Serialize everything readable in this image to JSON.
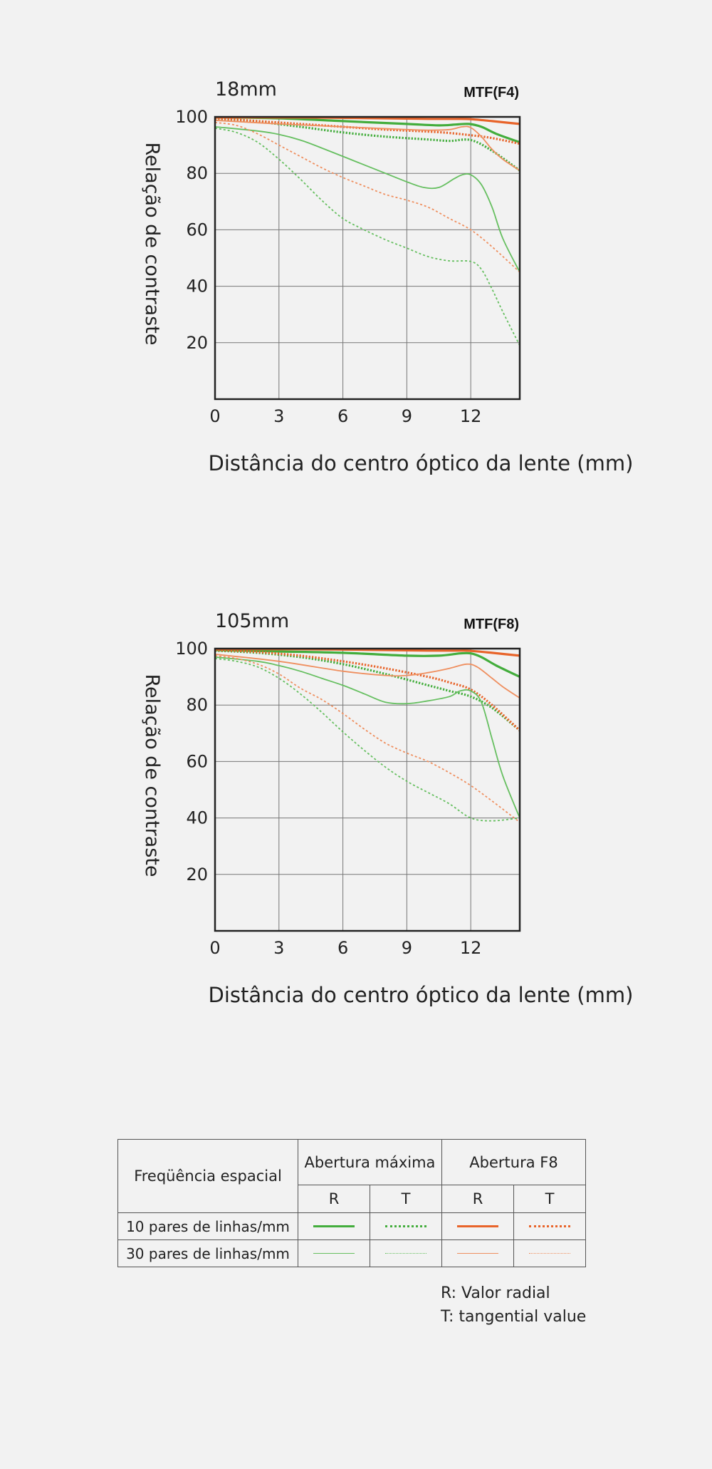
{
  "colors": {
    "green_10": "#43ad3c",
    "green_30": "#66bf60",
    "orange_10": "#e8642a",
    "orange_30": "#ef8f5f",
    "frame": "#222222",
    "grid": "#777777"
  },
  "chart_data": [
    {
      "type": "line",
      "title": "18mm",
      "subtitle": "MTF(F4)",
      "xlabel": "Distância do centro óptico da lente (mm)",
      "ylabel": "Relação de contraste",
      "xlim": [
        0,
        14.3
      ],
      "ylim": [
        0,
        100
      ],
      "xticks": [
        0,
        3,
        6,
        9,
        12
      ],
      "yticks": [
        20,
        40,
        60,
        80,
        100
      ],
      "grid": true,
      "series": [
        {
          "color": "green_10",
          "dash": "solid",
          "width": 3.2,
          "x": [
            0,
            3,
            6,
            9,
            10.5,
            11.3,
            11.9,
            12.5,
            13.2,
            14.3
          ],
          "y": [
            99.8,
            99.5,
            98.5,
            97.5,
            97,
            97.3,
            97.5,
            96.5,
            94,
            91
          ]
        },
        {
          "color": "green_10",
          "dash": "dotted",
          "width": 3.2,
          "x": [
            0,
            2,
            4,
            6,
            8,
            10,
            11,
            12,
            13,
            14.3
          ],
          "y": [
            99.5,
            98.3,
            96.5,
            94.5,
            93,
            92,
            91.5,
            91.8,
            88,
            81
          ]
        },
        {
          "color": "orange_10",
          "dash": "solid",
          "width": 3.2,
          "x": [
            0,
            4,
            8,
            10,
            11.3,
            12,
            13,
            14.3
          ],
          "y": [
            99.8,
            99.8,
            99.5,
            99.3,
            99.3,
            99.2,
            98.5,
            97.5
          ]
        },
        {
          "color": "orange_10",
          "dash": "dotted",
          "width": 3.2,
          "x": [
            0,
            2,
            4,
            6,
            8,
            10,
            11,
            12,
            13,
            14.3
          ],
          "y": [
            99.5,
            98.5,
            97.5,
            96.5,
            95.5,
            94.8,
            94.3,
            93.5,
            92.5,
            90.5
          ]
        },
        {
          "color": "green_30",
          "dash": "solid",
          "width": 1.8,
          "x": [
            0,
            2,
            3,
            4,
            5,
            6,
            7,
            8,
            9,
            9.8,
            10.5,
            11.2,
            11.6,
            12,
            12.5,
            13,
            13.5,
            14.3
          ],
          "y": [
            96.5,
            95,
            93.8,
            91.8,
            89,
            86,
            83,
            80,
            77,
            75,
            75,
            78,
            79.5,
            79.5,
            76,
            68,
            57,
            45
          ]
        },
        {
          "color": "green_30",
          "dash": "dotted",
          "width": 1.8,
          "x": [
            0,
            1,
            2,
            3,
            4,
            5,
            6,
            7,
            8,
            9,
            10,
            11,
            12,
            12.5,
            13,
            13.5,
            14.3
          ],
          "y": [
            96,
            94.5,
            91,
            85,
            78,
            70.5,
            64,
            60,
            56.5,
            53.5,
            50.5,
            49,
            48.8,
            46,
            39,
            31,
            19
          ]
        },
        {
          "color": "orange_30",
          "dash": "solid",
          "width": 1.8,
          "x": [
            0,
            3,
            6,
            9,
            10,
            11,
            11.6,
            12,
            12.5,
            13,
            13.5,
            14.3
          ],
          "y": [
            98.8,
            97.5,
            96.5,
            95.5,
            95.3,
            95.5,
            96.5,
            96.2,
            93,
            88.5,
            85,
            81
          ]
        },
        {
          "color": "orange_30",
          "dash": "dotted",
          "width": 1.8,
          "x": [
            0,
            1,
            2,
            3,
            4,
            5,
            6,
            7,
            8,
            9,
            10,
            11,
            12,
            13,
            14.3
          ],
          "y": [
            98,
            97,
            94,
            90,
            86,
            82,
            78.5,
            75.5,
            72.5,
            70.5,
            68,
            64,
            60,
            54,
            45
          ]
        }
      ]
    },
    {
      "type": "line",
      "title": "105mm",
      "subtitle": "MTF(F8)",
      "xlabel": "Distância do centro óptico da lente (mm)",
      "ylabel": "Relação de contraste",
      "xlim": [
        0,
        14.3
      ],
      "ylim": [
        0,
        100
      ],
      "xticks": [
        0,
        3,
        6,
        9,
        12
      ],
      "yticks": [
        20,
        40,
        60,
        80,
        100
      ],
      "grid": true,
      "series": [
        {
          "color": "green_10",
          "dash": "solid",
          "width": 3.2,
          "x": [
            0,
            3,
            6,
            9,
            10.5,
            11.5,
            12,
            12.5,
            13.2,
            14.3
          ],
          "y": [
            99.5,
            99,
            98.5,
            97.5,
            97.5,
            98.3,
            98.3,
            97,
            94,
            90
          ]
        },
        {
          "color": "green_10",
          "dash": "dotted",
          "width": 3.2,
          "x": [
            0,
            2,
            4,
            6,
            8,
            10,
            11,
            12,
            13,
            14.3
          ],
          "y": [
            99.3,
            98.5,
            97,
            94.5,
            91,
            87,
            85,
            83,
            79,
            71
          ]
        },
        {
          "color": "orange_10",
          "dash": "solid",
          "width": 3.2,
          "x": [
            0,
            4,
            8,
            10,
            11.5,
            12,
            13,
            14.3
          ],
          "y": [
            99.8,
            99.8,
            99.5,
            99.3,
            99.3,
            99.2,
            98.5,
            97.5
          ]
        },
        {
          "color": "orange_10",
          "dash": "dotted",
          "width": 3.2,
          "x": [
            0,
            2,
            4,
            6,
            8,
            10,
            11,
            12,
            13,
            14.3
          ],
          "y": [
            99.5,
            98.8,
            97.5,
            95.5,
            93,
            90,
            88,
            85.5,
            80,
            71
          ]
        },
        {
          "color": "green_30",
          "dash": "solid",
          "width": 1.8,
          "x": [
            0,
            2,
            3,
            4,
            5,
            6,
            7,
            8,
            9,
            10,
            11,
            11.5,
            12,
            12.5,
            13,
            13.5,
            14.3
          ],
          "y": [
            97,
            95.5,
            94,
            92,
            89.5,
            87,
            84,
            81,
            80.5,
            81.5,
            83,
            85,
            85,
            81,
            68,
            55,
            40
          ]
        },
        {
          "color": "green_30",
          "dash": "dotted",
          "width": 1.8,
          "x": [
            0,
            1,
            2,
            3,
            4,
            5,
            6,
            7,
            8,
            9,
            10,
            11,
            12,
            13,
            14.3
          ],
          "y": [
            96.5,
            95.5,
            93.5,
            89.5,
            84,
            77.5,
            70.5,
            64,
            58,
            53,
            49,
            45,
            40,
            39,
            40
          ]
        },
        {
          "color": "orange_30",
          "dash": "solid",
          "width": 1.8,
          "x": [
            0,
            3,
            6,
            8,
            9,
            10,
            11,
            11.8,
            12.3,
            13,
            13.5,
            14.3
          ],
          "y": [
            98,
            95.5,
            92,
            90.5,
            90.5,
            91.5,
            93,
            94.5,
            93.5,
            89.5,
            86.5,
            82.5
          ]
        },
        {
          "color": "orange_30",
          "dash": "dotted",
          "width": 1.8,
          "x": [
            0,
            1,
            2,
            3,
            4,
            5,
            6,
            7,
            8,
            9,
            10,
            11,
            12,
            13,
            14.3
          ],
          "y": [
            97.5,
            96.5,
            94.5,
            91,
            86,
            82,
            77,
            71.5,
            66.5,
            63,
            60,
            56,
            51.5,
            46,
            38.5
          ]
        }
      ]
    }
  ],
  "legend": {
    "header_frequency": "Freqüência espacial",
    "header_max_aperture": "Abertura máxima",
    "header_f8": "Abertura F8",
    "r_label": "R",
    "t_label": "T",
    "row_10": "10 pares de linhas/mm",
    "row_30": "30 pares de linhas/mm"
  },
  "notes": {
    "r_note": "R: Valor radial",
    "t_note": "T: tangential value"
  }
}
